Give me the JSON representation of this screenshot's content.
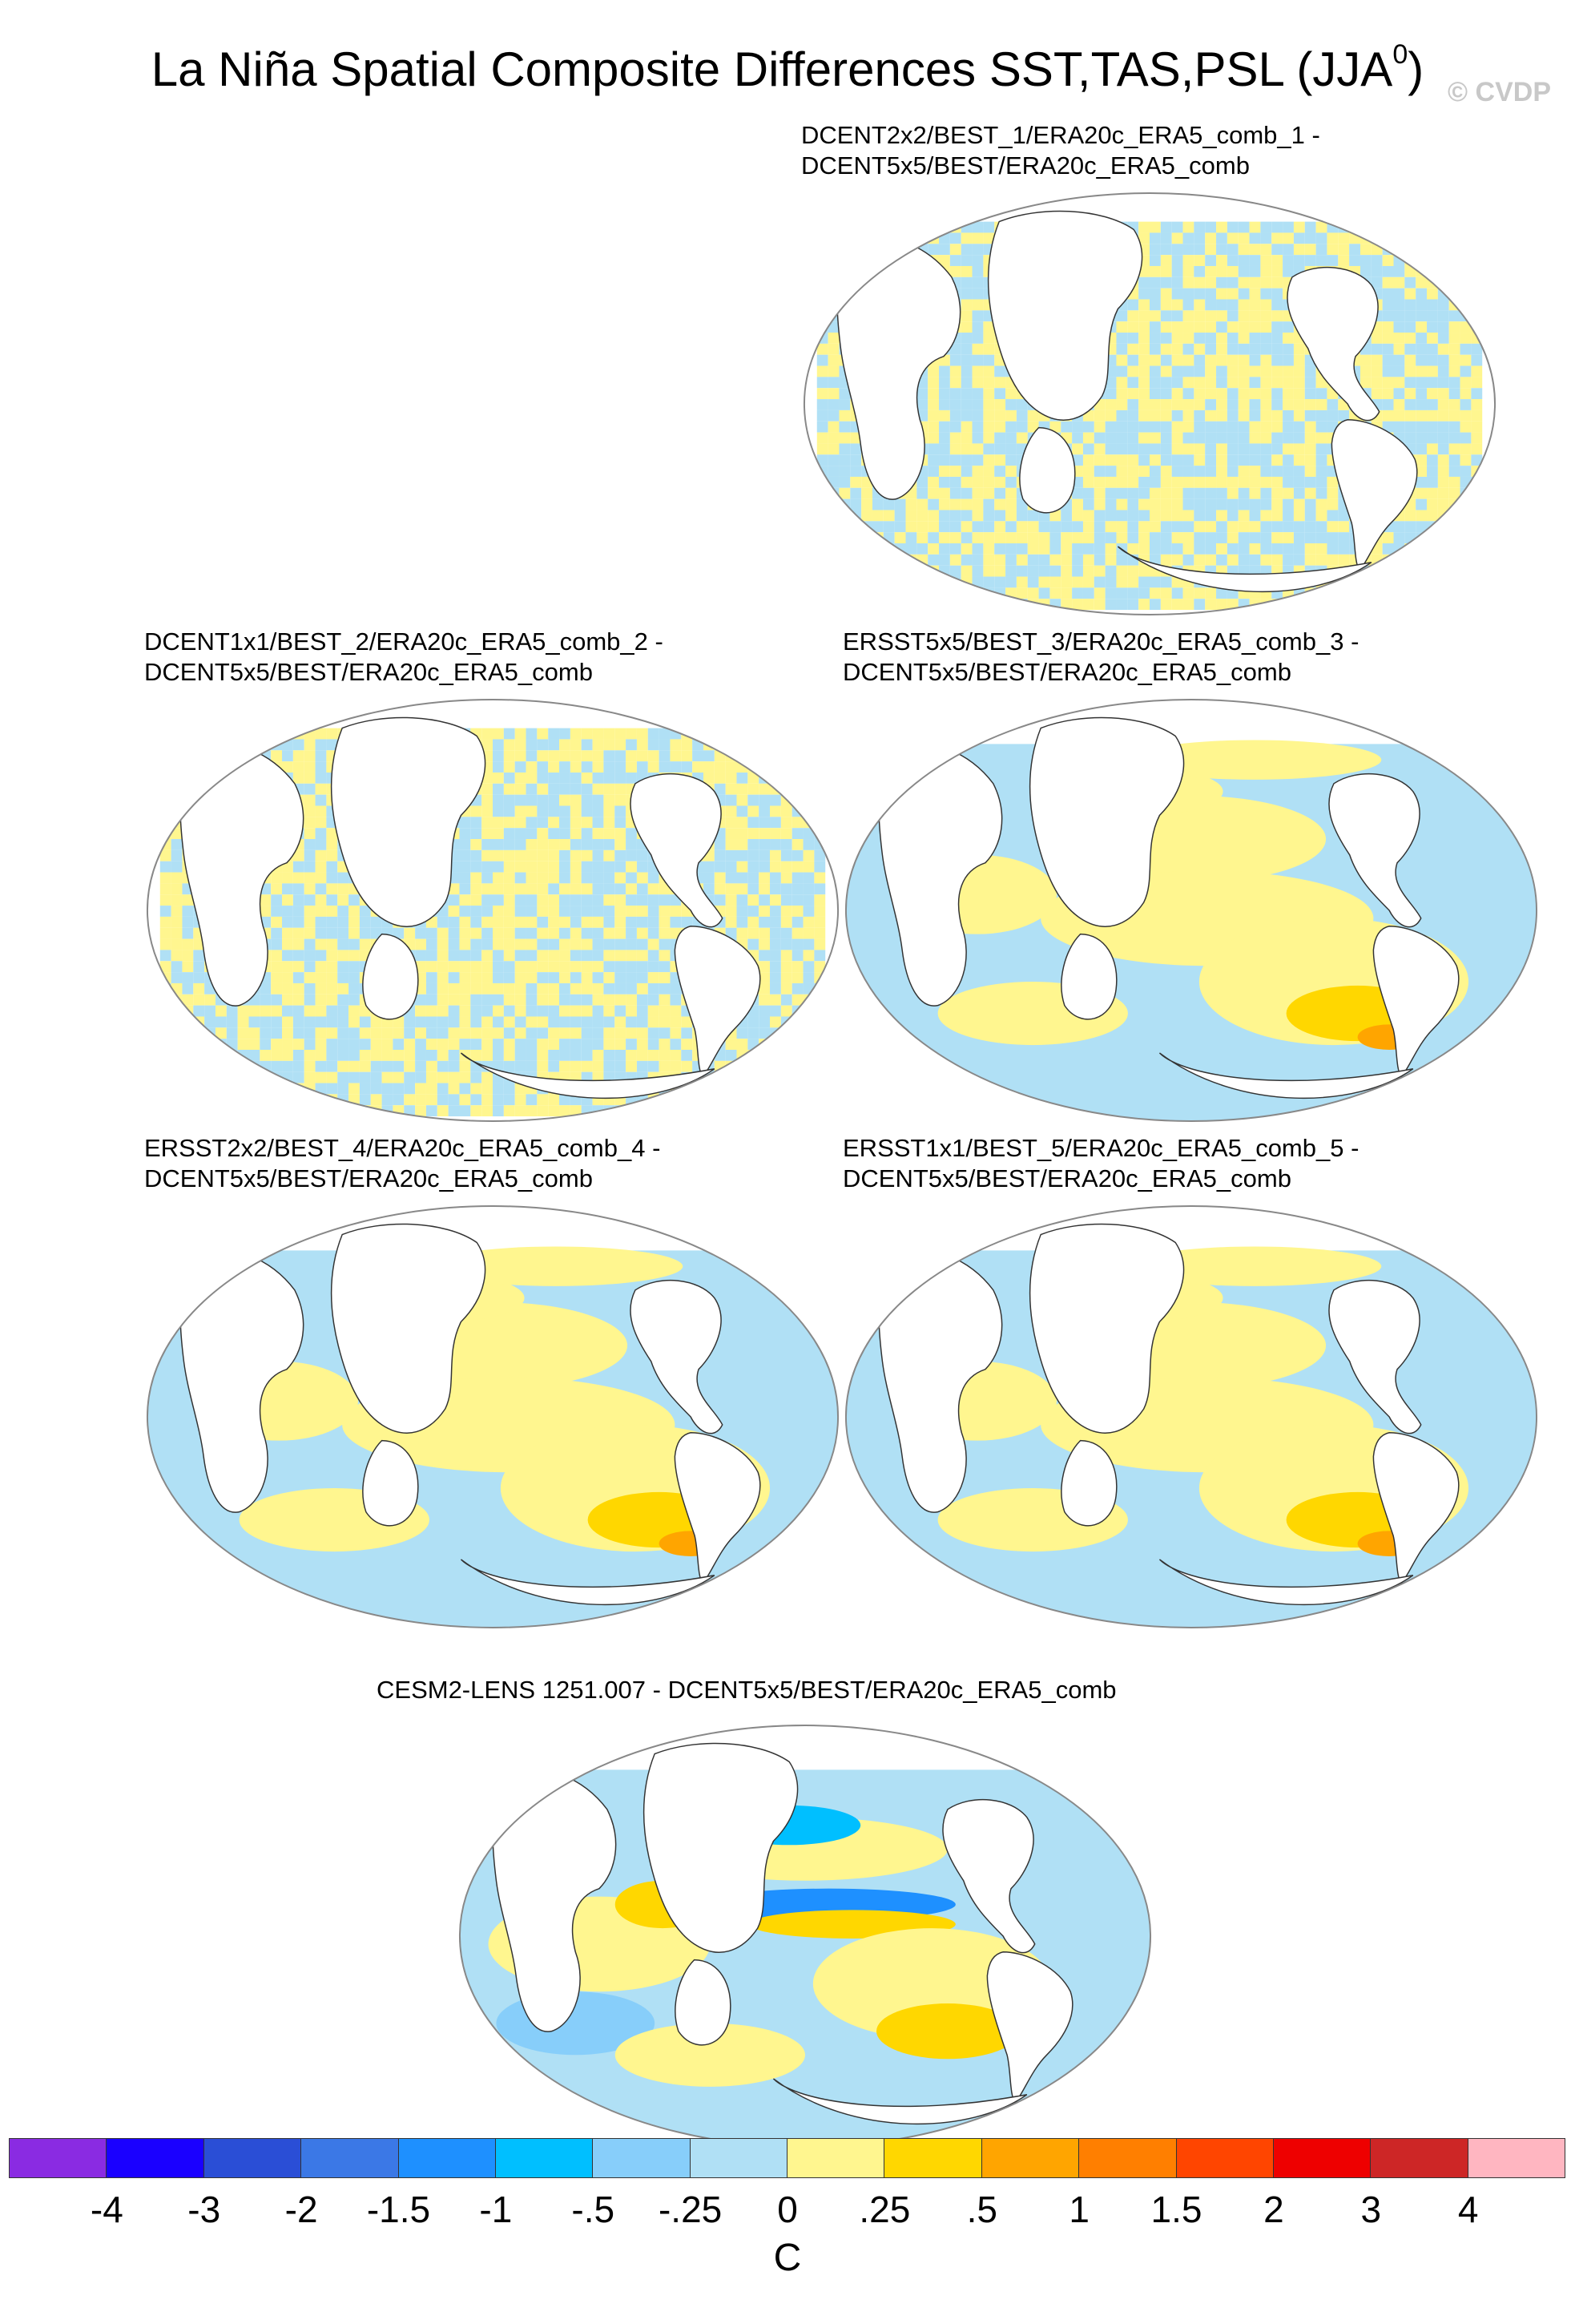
{
  "title": "La Niña Spatial Composite Differences SST,TAS,PSL (JJA",
  "title_sup": "0",
  "title_end": ")",
  "credit": "© CVDP",
  "panels": [
    {
      "line1": "DCENT2x2/BEST_1/ERA20c_ERA5_comb_1 -",
      "line2": "DCENT5x5/BEST/ERA20c_ERA5_comb",
      "pattern": "noise"
    },
    {
      "line1": "DCENT1x1/BEST_2/ERA20c_ERA5_comb_2 -",
      "line2": "DCENT5x5/BEST/ERA20c_ERA5_comb",
      "pattern": "noise"
    },
    {
      "line1": "ERSST5x5/BEST_3/ERA20c_ERA5_comb_3 -",
      "line2": "DCENT5x5/BEST/ERA20c_ERA5_comb",
      "pattern": "smooth"
    },
    {
      "line1": "ERSST2x2/BEST_4/ERA20c_ERA5_comb_4 -",
      "line2": "DCENT5x5/BEST/ERA20c_ERA5_comb",
      "pattern": "smooth"
    },
    {
      "line1": "ERSST1x1/BEST_5/ERA20c_ERA5_comb_5 -",
      "line2": "DCENT5x5/BEST/ERA20c_ERA5_comb",
      "pattern": "smooth"
    },
    {
      "line1": "CESM2-LENS 1251.007 - DCENT5x5/BEST/ERA20c_ERA5_comb",
      "line2": "",
      "pattern": "model"
    }
  ],
  "colorbar": {
    "colors": [
      "#8a2be2",
      "#1a00ff",
      "#2a4ed6",
      "#3b78e6",
      "#1e90ff",
      "#00bfff",
      "#87cefa",
      "#b0e0f5",
      "#fff68f",
      "#ffd700",
      "#ffa500",
      "#ff7f00",
      "#ff4500",
      "#ee0000",
      "#cd2626",
      "#ffb6c1"
    ],
    "ticks": [
      "-4",
      "-3",
      "-2",
      "-1.5",
      "-1",
      "-.5",
      "-.25",
      "0",
      ".25",
      ".5",
      "1",
      "1.5",
      "2",
      "3",
      "4"
    ],
    "unit": "C"
  }
}
